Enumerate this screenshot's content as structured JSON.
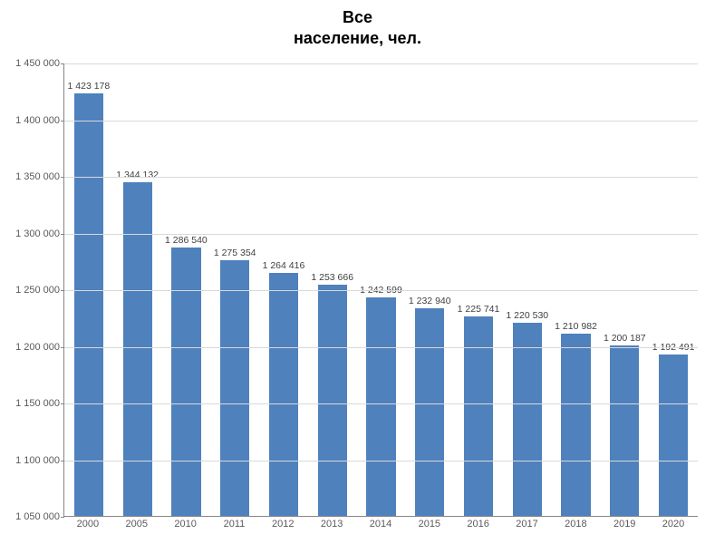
{
  "chart": {
    "type": "bar",
    "title_line1": "Все",
    "title_line2": "население, чел.",
    "title_fontsize": 18,
    "title_fontweight": "bold",
    "title_color": "#000000",
    "background_color": "#ffffff",
    "grid_color": "#d9d9d9",
    "axis_color": "#868686",
    "axis_label_color": "#595959",
    "data_label_color": "#404040",
    "bar_color": "#4f81bd",
    "bar_width": 0.6,
    "ylim": [
      1050000,
      1450000
    ],
    "ytick_step": 50000,
    "yticks": [
      1050000,
      1100000,
      1150000,
      1200000,
      1250000,
      1300000,
      1350000,
      1400000,
      1450000
    ],
    "ytick_labels": [
      "1 050 000",
      "1 100 000",
      "1 150 000",
      "1 200 000",
      "1 250 000",
      "1 300 000",
      "1 350 000",
      "1 400 000",
      "1 450 000"
    ],
    "categories": [
      "2000",
      "2005",
      "2010",
      "2011",
      "2012",
      "2013",
      "2014",
      "2015",
      "2016",
      "2017",
      "2018",
      "2019",
      "2020"
    ],
    "values": [
      1423178,
      1344132,
      1286540,
      1275354,
      1264416,
      1253666,
      1242599,
      1232940,
      1225741,
      1220530,
      1210982,
      1200187,
      1192491
    ],
    "value_labels": [
      "1 423 178",
      "1 344 132",
      "1 286 540",
      "1 275 354",
      "1 264 416",
      "1 253 666",
      "1 242 599",
      "1 232 940",
      "1 225 741",
      "1 220 530",
      "1 210 982",
      "1 200 187",
      "1 192 491"
    ],
    "label_fontsize": 11,
    "data_label_fontsize": 10.5,
    "grid_on": true
  }
}
